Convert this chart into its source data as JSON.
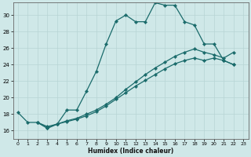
{
  "xlabel": "Humidex (Indice chaleur)",
  "bg_color": "#cfe8e8",
  "grid_color": "#b8d4d4",
  "line_color": "#1a6b6b",
  "marker": "D",
  "markersize": 2.2,
  "linewidth": 0.9,
  "xlim": [
    -0.5,
    23.5
  ],
  "ylim": [
    15.0,
    31.5
  ],
  "xticks": [
    0,
    1,
    2,
    3,
    4,
    5,
    6,
    7,
    8,
    9,
    10,
    11,
    12,
    13,
    14,
    15,
    16,
    17,
    18,
    19,
    20,
    21,
    22,
    23
  ],
  "yticks": [
    16,
    18,
    20,
    22,
    24,
    26,
    28,
    30
  ],
  "curve1_x": [
    0,
    1,
    2,
    3,
    4,
    5,
    6,
    7,
    8,
    9,
    10,
    11,
    12,
    13,
    14,
    15,
    16,
    17,
    18,
    19,
    20,
    21,
    22
  ],
  "curve1_y": [
    18.2,
    17.0,
    17.0,
    16.3,
    16.8,
    18.5,
    18.5,
    20.8,
    23.2,
    26.5,
    29.3,
    30.0,
    29.2,
    29.2,
    31.5,
    31.2,
    31.2,
    29.2,
    28.8,
    26.5,
    26.5,
    24.5,
    24.0
  ],
  "curve2_x": [
    2,
    3,
    4,
    5,
    6,
    7,
    8,
    9,
    10,
    11,
    12,
    13,
    14,
    15,
    16,
    17,
    18,
    19,
    20,
    21,
    22
  ],
  "curve2_y": [
    17.0,
    16.3,
    16.8,
    17.1,
    17.4,
    17.8,
    18.3,
    19.0,
    19.8,
    20.6,
    21.4,
    22.1,
    22.8,
    23.5,
    24.1,
    24.5,
    24.8,
    24.5,
    24.8,
    24.5,
    24.0
  ],
  "curve3_x": [
    2,
    3,
    4,
    5,
    6,
    7,
    8,
    9,
    10,
    11,
    12,
    13,
    14,
    15,
    16,
    17,
    18,
    19,
    20,
    21,
    22
  ],
  "curve3_y": [
    17.0,
    16.5,
    16.8,
    17.2,
    17.5,
    18.0,
    18.5,
    19.2,
    20.0,
    21.0,
    21.9,
    22.8,
    23.6,
    24.3,
    25.0,
    25.5,
    25.9,
    25.5,
    25.2,
    24.8,
    25.5
  ]
}
